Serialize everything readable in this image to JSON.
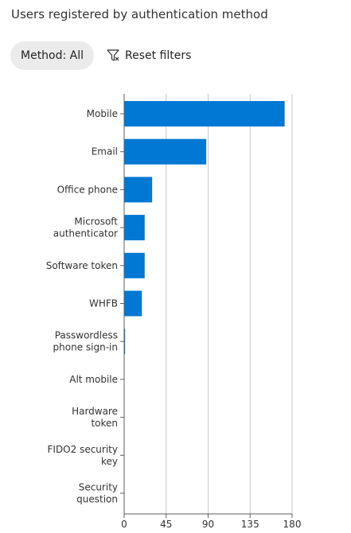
{
  "header": {
    "title": "Users registered by authentication method"
  },
  "filters": {
    "method_pill": "Method: All",
    "reset_label": "Reset filters",
    "reset_icon": "filter-clear-icon"
  },
  "colors": {
    "bar": "#0078d4",
    "grid": "#c8c6c4",
    "axis": "#605e5c"
  },
  "chart_data": {
    "type": "bar",
    "orientation": "horizontal",
    "title": "",
    "xlabel": "",
    "ylabel": "",
    "categories": [
      [
        "Mobile"
      ],
      [
        "Email"
      ],
      [
        "Office phone"
      ],
      [
        "Microsoft",
        "authenticator"
      ],
      [
        "Software token"
      ],
      [
        "WHFB"
      ],
      [
        "Passwordless",
        "phone sign-in"
      ],
      [
        "Alt mobile"
      ],
      [
        "Hardware",
        "token"
      ],
      [
        "FIDO2 security",
        "key"
      ],
      [
        "Security",
        "question"
      ]
    ],
    "values": [
      172,
      88,
      30,
      22,
      22,
      19,
      1,
      0,
      0,
      0,
      0
    ],
    "xlim": [
      0,
      180
    ],
    "xticks": [
      0,
      45,
      90,
      135,
      180
    ],
    "grid": true
  }
}
